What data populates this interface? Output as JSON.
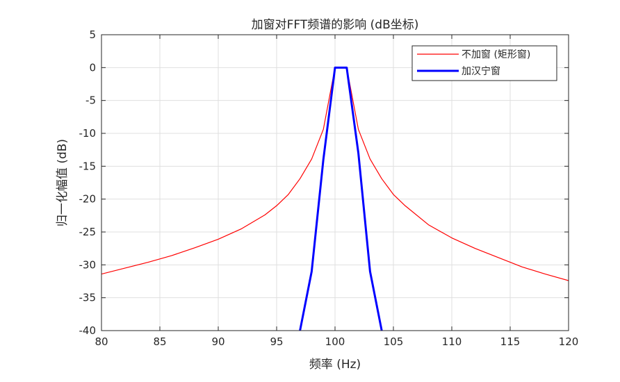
{
  "chart_data": {
    "type": "line",
    "title": "加窗对FFT频谱的影响 (dB坐标)",
    "xlabel": "频率 (Hz)",
    "ylabel": "归一化幅值 (dB)",
    "xlim": [
      80,
      120
    ],
    "ylim": [
      -40,
      5
    ],
    "xticks": [
      "80",
      "85",
      "90",
      "95",
      "100",
      "105",
      "110",
      "115",
      "120"
    ],
    "yticks": [
      "5",
      "0",
      "-5",
      "-10",
      "-15",
      "-20",
      "-25",
      "-30",
      "-35",
      "-40"
    ],
    "grid": true,
    "legend_position": "top-right",
    "series": [
      {
        "name": "不加窗 (矩形窗)",
        "color": "#ff0000",
        "x": [
          80,
          82,
          84,
          86,
          88,
          90,
          92,
          94,
          95,
          96,
          97,
          98,
          99,
          100,
          101,
          102,
          103,
          104,
          105,
          106,
          108,
          110,
          112,
          114,
          116,
          118,
          120
        ],
        "y": [
          -31.4,
          -30.5,
          -29.6,
          -28.6,
          -27.4,
          -26.1,
          -24.5,
          -22.4,
          -21.0,
          -19.3,
          -16.9,
          -13.9,
          -9.4,
          0,
          0,
          -9.4,
          -13.9,
          -16.9,
          -19.3,
          -21.0,
          -23.9,
          -25.9,
          -27.5,
          -28.9,
          -30.3,
          -31.4,
          -32.4
        ]
      },
      {
        "name": "加汉宁窗",
        "color": "#0000ff",
        "x": [
          97,
          98,
          99,
          100,
          101,
          102,
          103,
          104
        ],
        "y": [
          -40,
          -31,
          -14,
          0,
          0,
          -13,
          -31,
          -40
        ]
      }
    ]
  }
}
